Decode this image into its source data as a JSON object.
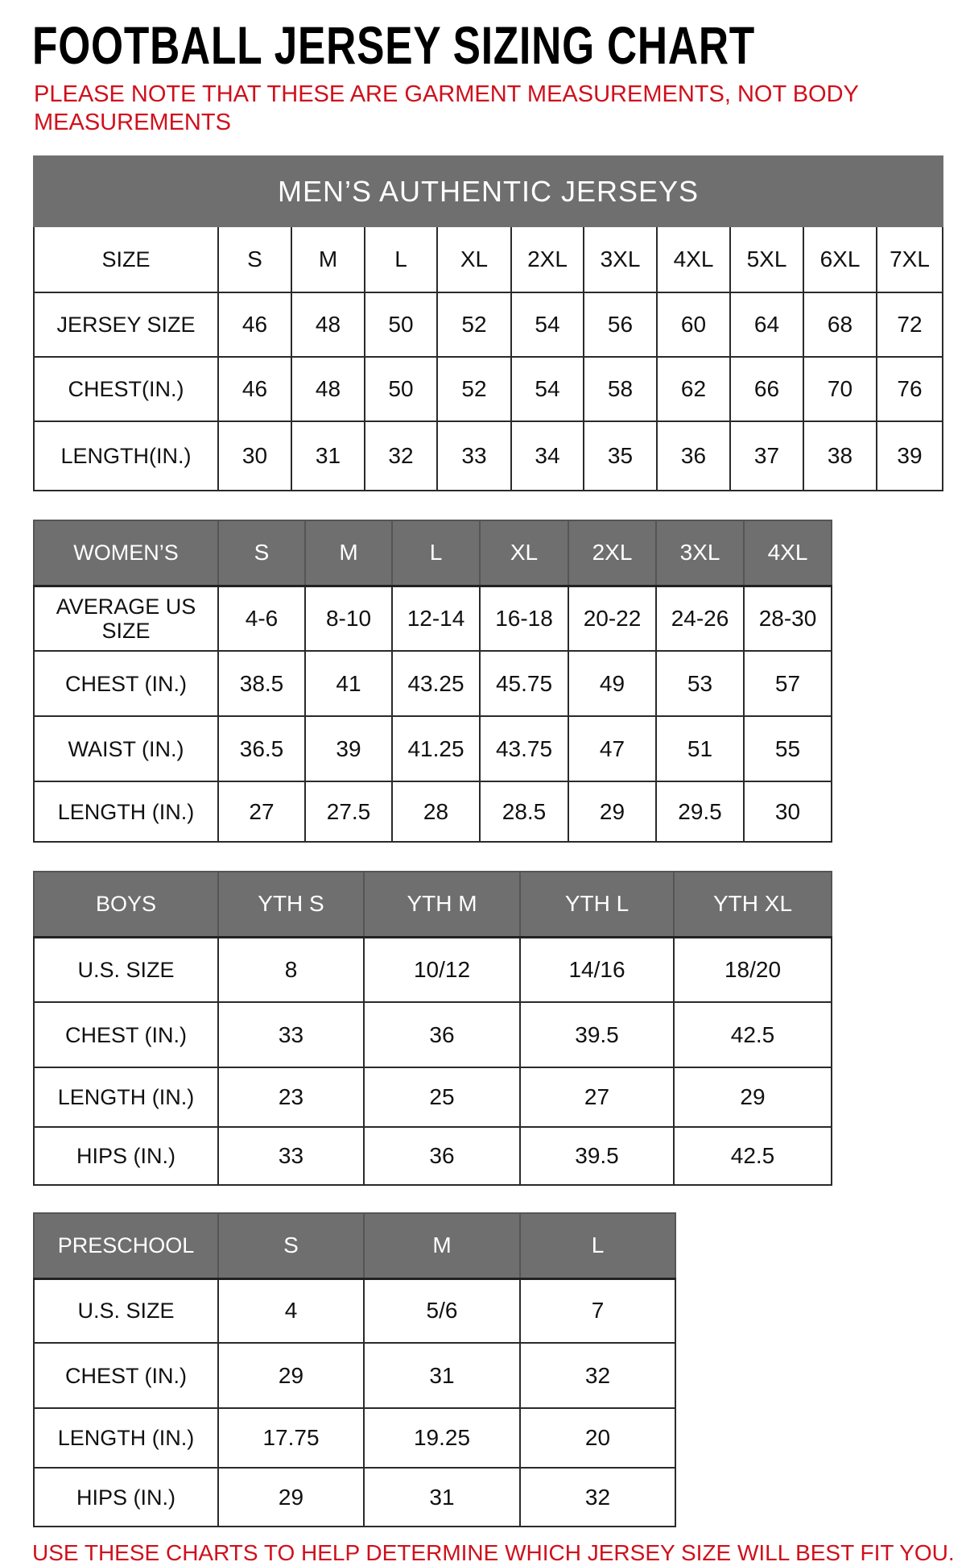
{
  "title": "FOOTBALL JERSEY SIZING CHART",
  "note": "PLEASE NOTE THAT THESE ARE GARMENT MEASUREMENTS, NOT BODY MEASUREMENTS",
  "footer": "USE THESE CHARTS TO HELP DETERMINE WHICH JERSEY SIZE WILL BEST FIT YOU.",
  "colors": {
    "header_gray": "#6f6f6f",
    "accent_red": "#d0101c"
  },
  "tables": [
    {
      "id": "mens",
      "band": "MEN’S AUTHENTIC JERSEYS",
      "header": [
        "SIZE",
        "S",
        "M",
        "L",
        "XL",
        "2XL",
        "3XL",
        "4XL",
        "5XL",
        "6XL",
        "7XL"
      ],
      "rows": [
        [
          "JERSEY SIZE",
          "46",
          "48",
          "50",
          "52",
          "54",
          "56",
          "60",
          "64",
          "68",
          "72"
        ],
        [
          "CHEST(IN.)",
          "46",
          "48",
          "50",
          "52",
          "54",
          "58",
          "62",
          "66",
          "70",
          "76"
        ],
        [
          "LENGTH(IN.)",
          "30",
          "31",
          "32",
          "33",
          "34",
          "35",
          "36",
          "37",
          "38",
          "39"
        ]
      ]
    },
    {
      "id": "womens",
      "header": [
        "WOMEN’S",
        "S",
        "M",
        "L",
        "XL",
        "2XL",
        "3XL",
        "4XL"
      ],
      "rows": [
        [
          "AVERAGE US SIZE",
          "4-6",
          "8-10",
          "12-14",
          "16-18",
          "20-22",
          "24-26",
          "28-30"
        ],
        [
          "CHEST (IN.)",
          "38.5",
          "41",
          "43.25",
          "45.75",
          "49",
          "53",
          "57"
        ],
        [
          "WAIST (IN.)",
          "36.5",
          "39",
          "41.25",
          "43.75",
          "47",
          "51",
          "55"
        ],
        [
          "LENGTH (IN.)",
          "27",
          "27.5",
          "28",
          "28.5",
          "29",
          "29.5",
          "30"
        ]
      ]
    },
    {
      "id": "boys",
      "header": [
        "BOYS",
        "YTH S",
        "YTH M",
        "YTH L",
        "YTH XL"
      ],
      "rows": [
        [
          "U.S. SIZE",
          "8",
          "10/12",
          "14/16",
          "18/20"
        ],
        [
          "CHEST (IN.)",
          "33",
          "36",
          "39.5",
          "42.5"
        ],
        [
          "LENGTH (IN.)",
          "23",
          "25",
          "27",
          "29"
        ],
        [
          "HIPS (IN.)",
          "33",
          "36",
          "39.5",
          "42.5"
        ]
      ]
    },
    {
      "id": "preschool",
      "header": [
        "PRESCHOOL",
        "S",
        "M",
        "L"
      ],
      "rows": [
        [
          "U.S. SIZE",
          "4",
          "5/6",
          "7"
        ],
        [
          "CHEST (IN.)",
          "29",
          "31",
          "32"
        ],
        [
          "LENGTH (IN.)",
          "17.75",
          "19.25",
          "20"
        ],
        [
          "HIPS (IN.)",
          "29",
          "31",
          "32"
        ]
      ]
    }
  ]
}
